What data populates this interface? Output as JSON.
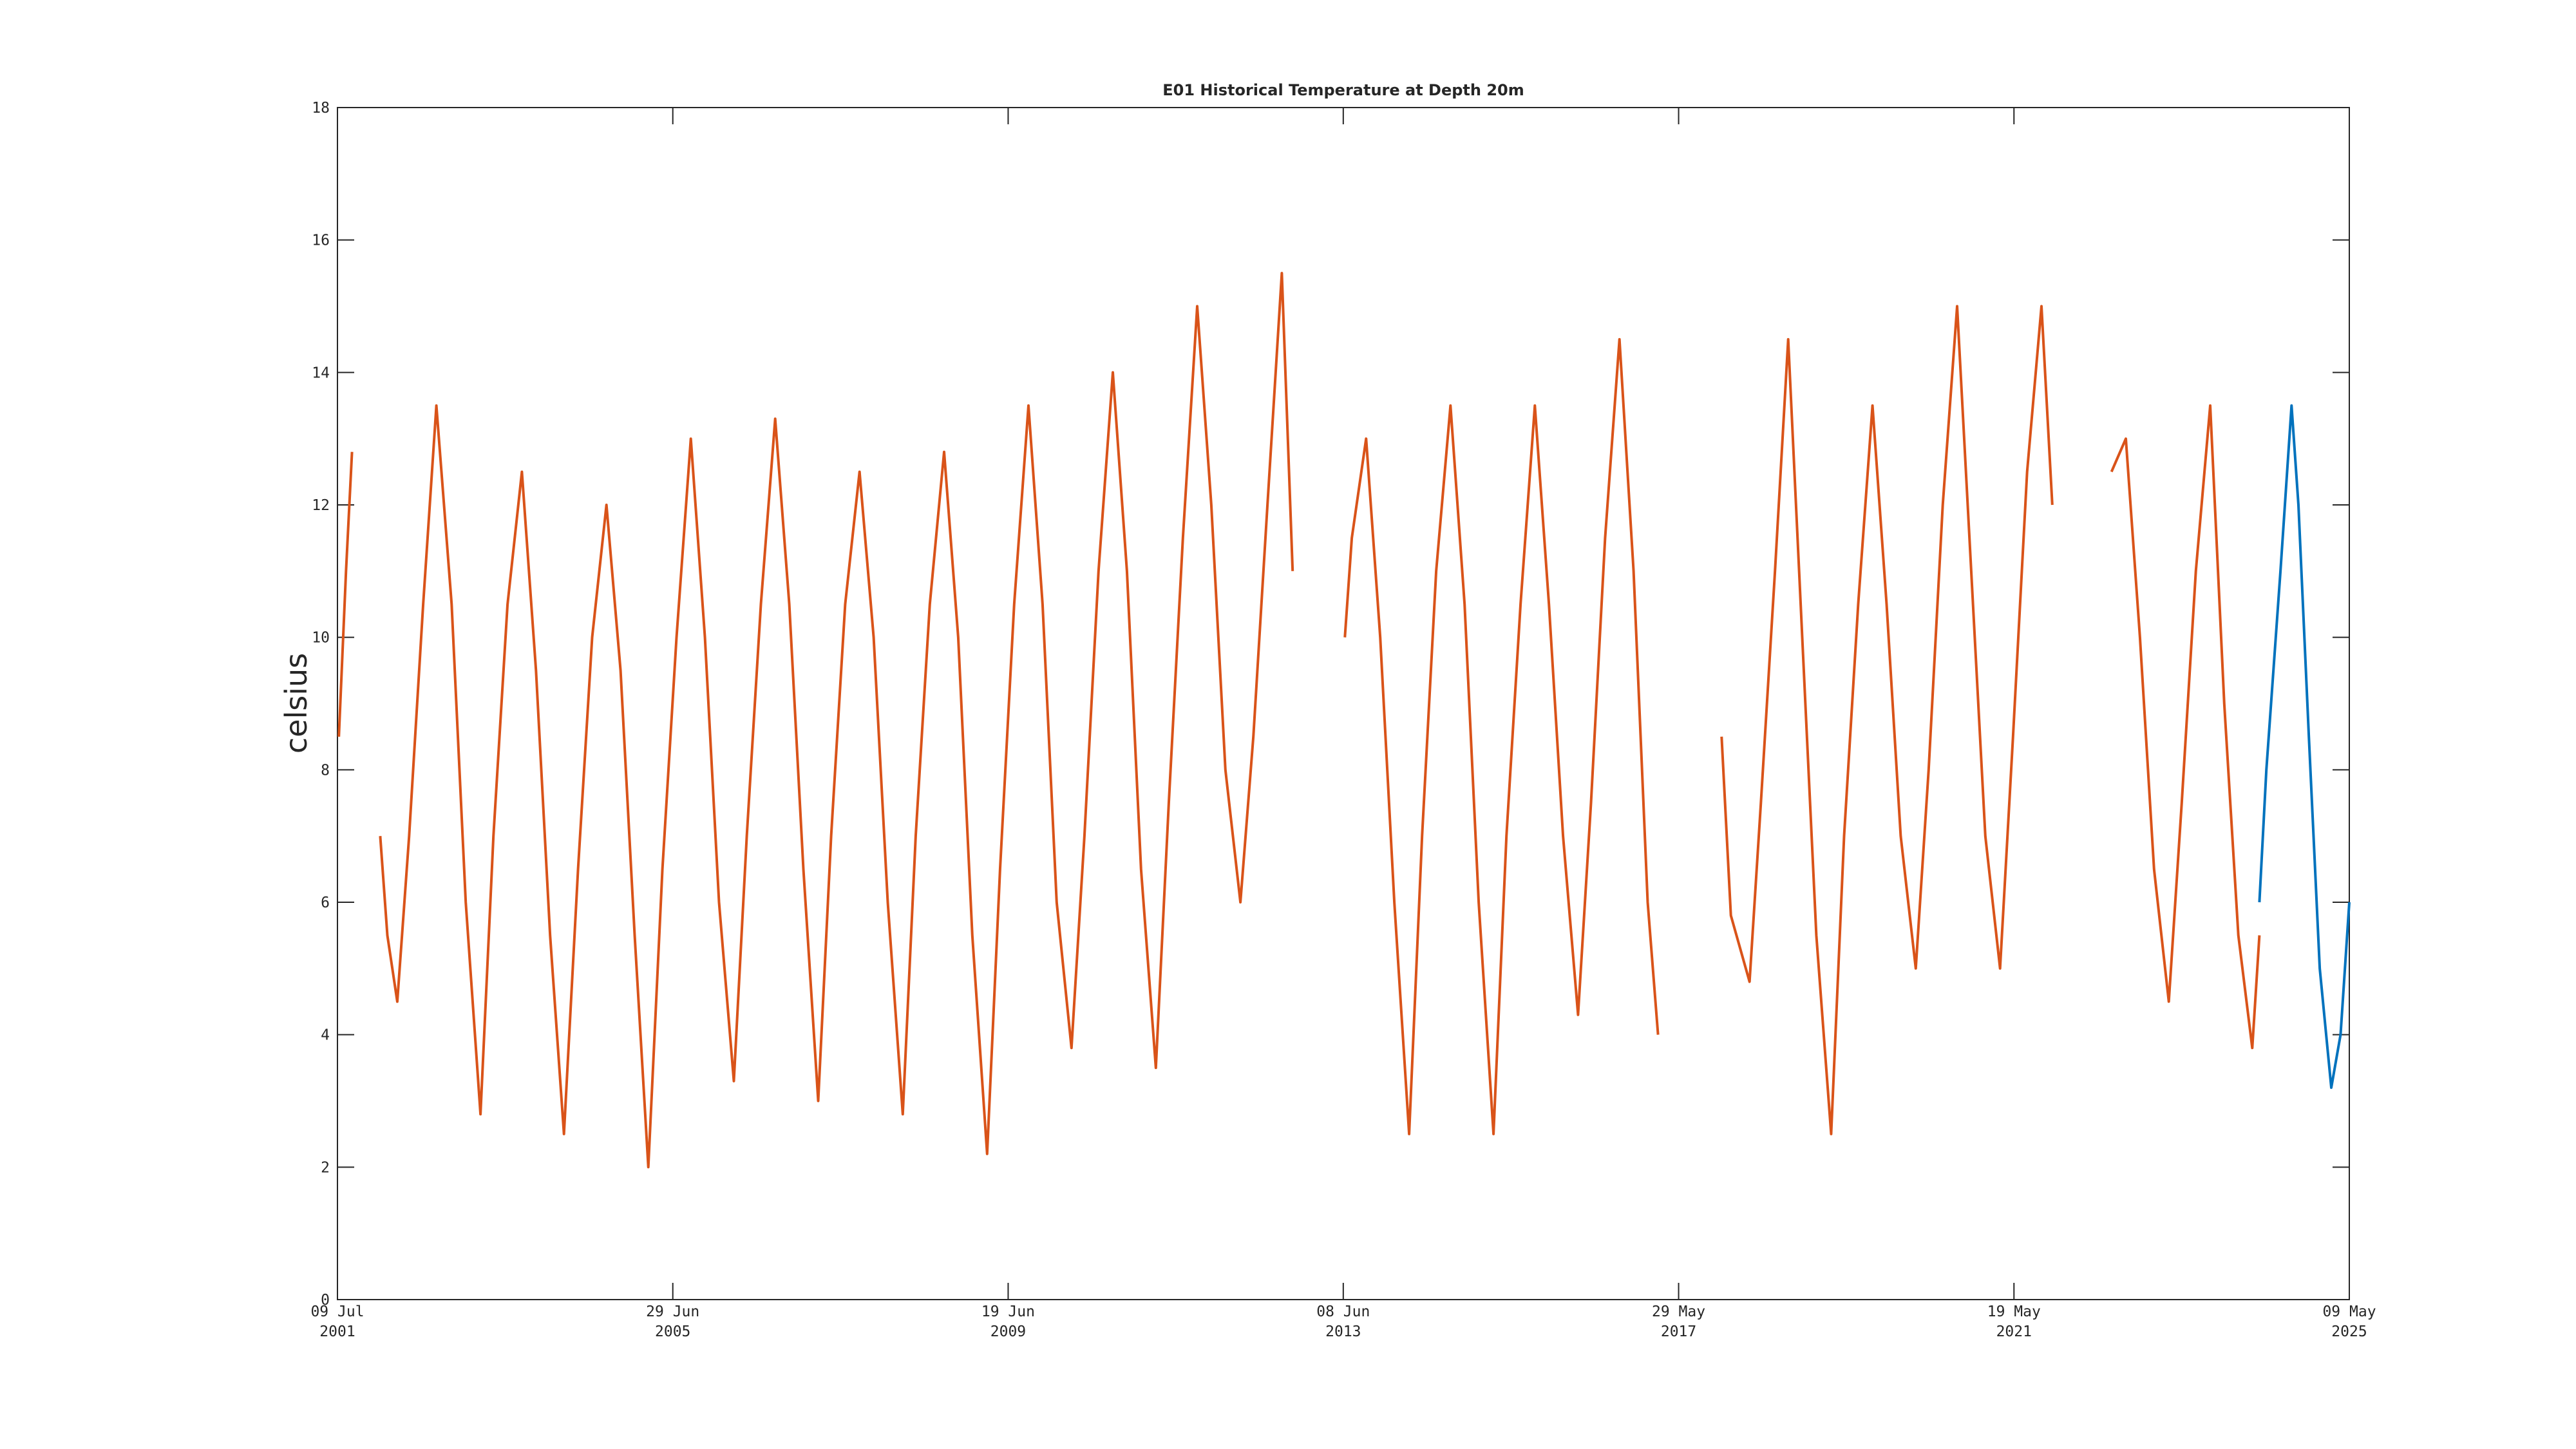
{
  "chart_data": {
    "type": "line",
    "title": "E01 Historical Temperature at Depth 20m",
    "y_label": "celsius",
    "xlim": [
      "2001-07-09",
      "2025-05-09"
    ],
    "xticks": [
      {
        "value": "2001-07-09",
        "label": [
          "09 Jul",
          "2001"
        ]
      },
      {
        "value": "2005-06-29",
        "label": [
          "29 Jun",
          "2005"
        ]
      },
      {
        "value": "2009-06-19",
        "label": [
          "19 Jun",
          "2009"
        ]
      },
      {
        "value": "2013-06-08",
        "label": [
          "08 Jun",
          "2013"
        ]
      },
      {
        "value": "2017-05-29",
        "label": [
          "29 May",
          "2017"
        ]
      },
      {
        "value": "2021-05-19",
        "label": [
          "19 May",
          "2021"
        ]
      },
      {
        "value": "2025-05-09",
        "label": [
          "09 May",
          "2025"
        ]
      }
    ],
    "ylim": [
      0,
      18
    ],
    "yticks": [
      0,
      2,
      4,
      6,
      8,
      10,
      12,
      14,
      16,
      18
    ],
    "grid": false,
    "series": [
      {
        "color": "#d95319",
        "x": [
          "2001-07-15",
          "2001-08-15",
          "2001-09-10",
          "2001-11-01",
          "2002-01-10",
          "2002-02-10",
          "2002-03-25",
          "2002-05-15",
          "2002-07-15",
          "2002-09-10",
          "2002-11-15",
          "2003-01-15",
          "2003-03-20",
          "2003-05-15",
          "2003-07-15",
          "2003-09-15",
          "2003-11-15",
          "2004-01-15",
          "2004-03-15",
          "2004-05-15",
          "2004-07-15",
          "2004-09-15",
          "2004-11-15",
          "2005-01-15",
          "2005-03-15",
          "2005-05-15",
          "2005-07-15",
          "2005-09-15",
          "2005-11-15",
          "2006-01-15",
          "2006-03-20",
          "2006-05-15",
          "2006-07-15",
          "2006-09-15",
          "2006-11-15",
          "2007-01-15",
          "2007-03-20",
          "2007-05-15",
          "2007-07-15",
          "2007-09-15",
          "2007-11-15",
          "2008-01-15",
          "2008-03-20",
          "2008-05-15",
          "2008-07-15",
          "2008-09-15",
          "2008-11-15",
          "2009-01-15",
          "2009-03-20",
          "2009-05-15",
          "2009-07-15",
          "2009-09-15",
          "2009-11-15",
          "2010-01-15",
          "2010-03-20",
          "2010-05-15",
          "2010-07-15",
          "2010-09-15",
          "2010-11-15",
          "2011-01-15",
          "2011-03-20",
          "2011-05-15",
          "2011-07-15",
          "2011-09-15",
          "2011-11-15",
          "2012-01-15",
          "2012-03-20",
          "2012-05-15",
          "2012-07-15",
          "2012-09-15",
          "2012-11-01",
          "2013-03-01",
          "2013-06-15",
          "2013-07-15",
          "2013-09-15",
          "2013-11-15",
          "2014-01-15",
          "2014-03-20",
          "2014-05-15",
          "2014-07-15",
          "2014-09-15",
          "2014-11-15",
          "2015-01-15",
          "2015-03-20",
          "2015-05-15",
          "2015-07-15",
          "2015-09-15",
          "2015-11-15",
          "2016-01-15",
          "2016-03-20",
          "2016-05-15",
          "2016-07-15",
          "2016-09-15",
          "2016-11-15",
          "2017-01-15",
          "2017-03-01",
          "2017-08-01",
          "2017-12-01",
          "2018-01-10",
          "2018-04-01",
          "2018-05-20",
          "2018-07-20",
          "2018-09-15",
          "2018-11-15",
          "2019-01-15",
          "2019-03-20",
          "2019-05-15",
          "2019-07-15",
          "2019-09-15",
          "2019-11-15",
          "2020-01-15",
          "2020-03-20",
          "2020-05-15",
          "2020-07-15",
          "2020-09-15",
          "2020-11-15",
          "2021-01-15",
          "2021-03-20",
          "2021-05-15",
          "2021-07-15",
          "2021-09-15",
          "2021-11-01",
          "2022-03-01",
          "2022-07-15",
          "2022-09-15",
          "2022-11-15",
          "2023-01-15",
          "2023-03-20",
          "2023-05-15",
          "2023-07-15",
          "2023-09-15",
          "2023-11-15",
          "2024-01-15",
          "2024-03-15",
          "2024-04-15"
        ],
        "values": [
          8.5,
          11,
          12.8,
          null,
          7.0,
          5.5,
          4.5,
          7,
          10.5,
          13.5,
          10.5,
          6,
          2.8,
          7,
          10.5,
          12.5,
          9.5,
          5.5,
          2.5,
          6.5,
          10,
          12,
          9.5,
          5.5,
          2,
          6.5,
          10,
          13,
          10,
          6,
          3.3,
          7,
          10.5,
          13.3,
          10.5,
          6.5,
          3,
          7,
          10.5,
          12.5,
          10,
          6,
          2.8,
          7,
          10.5,
          12.8,
          10,
          5.5,
          2.2,
          6.5,
          10.5,
          13.5,
          10.5,
          6,
          3.8,
          7,
          11,
          14,
          11,
          6.5,
          3.5,
          7.5,
          11.5,
          15,
          12,
          8,
          6,
          8.5,
          12,
          15.5,
          11,
          null,
          10,
          11.5,
          13,
          10,
          6,
          2.5,
          7,
          11,
          13.5,
          10.5,
          6,
          2.5,
          7,
          10.5,
          13.5,
          10.5,
          7,
          4.3,
          7.5,
          11.5,
          14.5,
          11,
          6,
          4,
          null,
          8.5,
          5.8,
          4.8,
          7.5,
          11,
          14.5,
          10,
          5.5,
          2.5,
          7,
          10.5,
          13.5,
          10.5,
          7,
          5,
          8,
          12,
          15,
          11,
          7,
          5,
          8.5,
          12.5,
          15,
          12,
          null,
          12.5,
          13,
          10,
          6.5,
          4.5,
          7.5,
          11,
          13.5,
          9,
          5.5,
          3.8,
          5.5
        ]
      },
      {
        "color": "#0072bd",
        "x": [
          "2024-04-15",
          "2024-05-15",
          "2024-07-15",
          "2024-09-01",
          "2024-10-01",
          "2024-11-15",
          "2025-01-01",
          "2025-02-20",
          "2025-04-01",
          "2025-05-09"
        ],
        "values": [
          6,
          8,
          11,
          13.5,
          12,
          8.5,
          5,
          3.2,
          4,
          6
        ]
      }
    ]
  }
}
